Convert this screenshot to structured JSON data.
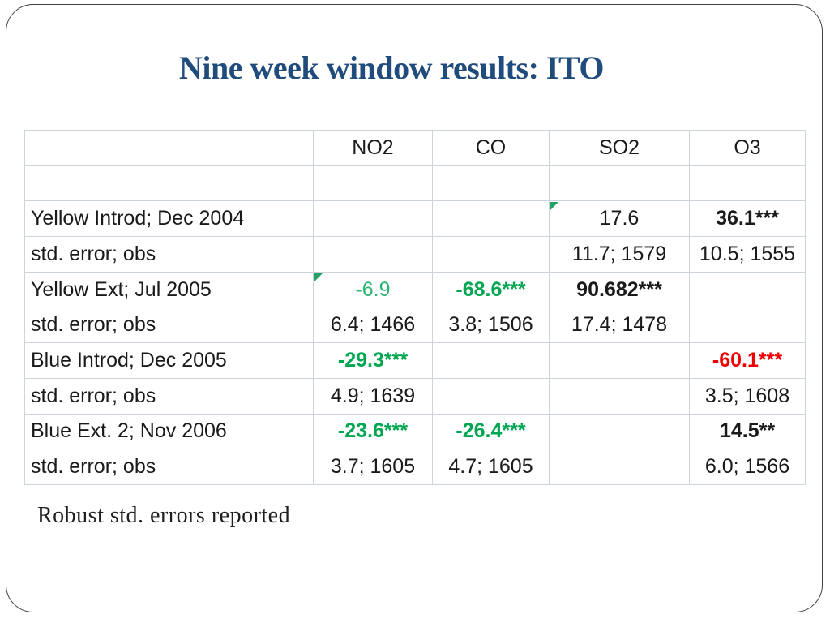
{
  "slide": {
    "title": "Nine week window results: ITO",
    "footer": "Robust std. errors reported"
  },
  "table": {
    "header": [
      "",
      "NO2",
      "CO",
      "SO2",
      "O3"
    ],
    "rows": [
      {
        "cells": [
          "",
          "",
          "",
          "",
          ""
        ]
      },
      {
        "cells": [
          "Yellow Introd; Dec 2004",
          "",
          "",
          "17.6",
          "36.1***"
        ]
      },
      {
        "cells": [
          "std. error; obs",
          "",
          "",
          "11.7; 1579",
          "10.5; 1555"
        ]
      },
      {
        "cells": [
          "Yellow Ext; Jul 2005",
          "-6.9",
          "-68.6***",
          "90.682***",
          ""
        ]
      },
      {
        "cells": [
          "std. error; obs",
          "6.4; 1466",
          "3.8; 1506",
          "17.4; 1478",
          ""
        ]
      },
      {
        "cells": [
          "Blue Introd; Dec 2005",
          "-29.3***",
          "",
          "",
          "-60.1***"
        ]
      },
      {
        "cells": [
          "std. error; obs",
          "4.9; 1639",
          "",
          "",
          "3.5; 1608"
        ]
      },
      {
        "cells": [
          "Blue Ext. 2; Nov 2006",
          "-23.6***",
          "-26.4***",
          "",
          "14.5**"
        ]
      },
      {
        "cells": [
          "std. error; obs",
          "3.7; 1605",
          "4.7; 1605",
          "",
          "6.0; 1566"
        ]
      }
    ],
    "cell_markers": [
      "comment-marker on SO2 of 'Yellow Introd; Dec 2004'",
      "comment-marker on NO2 of 'Yellow Ext; Jul 2005'"
    ]
  },
  "colors": {
    "title_blue": "#1f4c7c",
    "significant_green_bold": "#00a651",
    "green_plain": "#2bb673",
    "significant_red": "#ee0000",
    "grid_line": "#cdd3da",
    "marker_green": "#21a366",
    "frame_border": "#3f3f3f"
  }
}
